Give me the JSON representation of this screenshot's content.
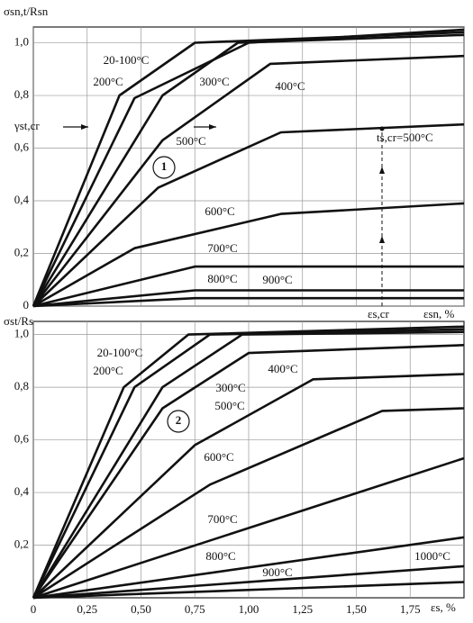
{
  "chart_data": [
    {
      "type": "line",
      "y_label": "σsn,t/Rsn",
      "x_label": "εsn, %",
      "xlim": [
        0,
        2
      ],
      "ylim": [
        0,
        1.06
      ],
      "xticks": [
        0,
        0.25,
        0.5,
        0.75,
        1,
        1.25,
        1.5,
        1.75,
        2
      ],
      "yticks": [
        0,
        {
          "value": 0.2,
          "label": "0,2"
        },
        {
          "value": 0.4,
          "label": "0,4"
        },
        {
          "value": 0.6,
          "label": "0,6"
        },
        {
          "value": 0.8,
          "label": "0,8"
        },
        {
          "value": 1,
          "label": "1,0"
        }
      ],
      "grid": true,
      "color": "#111",
      "annotations": [
        "γst,cr",
        "ts,cr=500°C",
        "εs,cr",
        "1"
      ],
      "series": [
        {
          "name": "20-100°C",
          "x": [
            0,
            0.4,
            0.75,
            2
          ],
          "values": [
            0,
            0.8,
            1.0,
            1.04
          ]
        },
        {
          "name": "200°C",
          "x": [
            0,
            0.47,
            1.0,
            2
          ],
          "values": [
            0,
            0.79,
            1.0,
            1.05
          ]
        },
        {
          "name": "300°C",
          "x": [
            0,
            0.6,
            0.95,
            2
          ],
          "values": [
            0,
            0.8,
            1.0,
            1.03
          ]
        },
        {
          "name": "400°C",
          "x": [
            0,
            0.6,
            1.1,
            2
          ],
          "values": [
            0,
            0.63,
            0.92,
            0.95
          ]
        },
        {
          "name": "500°C",
          "x": [
            0,
            0.58,
            1.15,
            2
          ],
          "values": [
            0,
            0.45,
            0.66,
            0.69
          ]
        },
        {
          "name": "600°C",
          "x": [
            0,
            0.47,
            1.15,
            2
          ],
          "values": [
            0,
            0.22,
            0.35,
            0.39
          ]
        },
        {
          "name": "700°C",
          "x": [
            0,
            0.75,
            2
          ],
          "values": [
            0,
            0.15,
            0.15
          ]
        },
        {
          "name": "800°C",
          "x": [
            0,
            0.75,
            2
          ],
          "values": [
            0,
            0.06,
            0.06
          ]
        },
        {
          "name": "900°C",
          "x": [
            0,
            0.75,
            2
          ],
          "values": [
            0,
            0.03,
            0.03
          ]
        }
      ]
    },
    {
      "type": "line",
      "y_label": "σst/Rs",
      "x_label": "εs, %",
      "xlim": [
        0,
        2
      ],
      "ylim": [
        0,
        1.05
      ],
      "xticks": [
        0,
        {
          "value": 0.25,
          "label": "0,25"
        },
        {
          "value": 0.5,
          "label": "0,50"
        },
        {
          "value": 0.75,
          "label": "0,75"
        },
        {
          "value": 1,
          "label": "1,00"
        },
        {
          "value": 1.25,
          "label": "1,25"
        },
        {
          "value": 1.5,
          "label": "1,50"
        },
        {
          "value": 1.75,
          "label": "1,75"
        }
      ],
      "yticks": [
        {
          "value": 0.2,
          "label": "0,2"
        },
        {
          "value": 0.4,
          "label": "0,4"
        },
        {
          "value": 0.6,
          "label": "0,6"
        },
        {
          "value": 0.8,
          "label": "0,8"
        },
        {
          "value": 1,
          "label": "1,0"
        }
      ],
      "grid": true,
      "color": "#111",
      "annotations": [
        "2"
      ],
      "series": [
        {
          "name": "20-100°C",
          "x": [
            0,
            0.42,
            0.72,
            2
          ],
          "values": [
            0,
            0.8,
            1.0,
            1.03
          ]
        },
        {
          "name": "200°C",
          "x": [
            0,
            0.47,
            0.82,
            2
          ],
          "values": [
            0,
            0.8,
            1.0,
            1.02
          ]
        },
        {
          "name": "300°C",
          "x": [
            0,
            0.6,
            0.97,
            2
          ],
          "values": [
            0,
            0.8,
            1.0,
            1.01
          ]
        },
        {
          "name": "400°C",
          "x": [
            0,
            0.6,
            1.0,
            2
          ],
          "values": [
            0,
            0.72,
            0.93,
            0.96
          ]
        },
        {
          "name": "500°C",
          "x": [
            0,
            0.75,
            1.3,
            2
          ],
          "values": [
            0,
            0.58,
            0.83,
            0.85
          ]
        },
        {
          "name": "600°C",
          "x": [
            0,
            0.82,
            1.62,
            2
          ],
          "values": [
            0,
            0.43,
            0.71,
            0.72
          ]
        },
        {
          "name": "700°C",
          "x": [
            0,
            2
          ],
          "values": [
            0,
            0.53
          ]
        },
        {
          "name": "800°C",
          "x": [
            0,
            2
          ],
          "values": [
            0,
            0.23
          ]
        },
        {
          "name": "900°C",
          "x": [
            0,
            2
          ],
          "values": [
            0,
            0.12
          ]
        },
        {
          "name": "1000°C",
          "x": [
            0,
            2
          ],
          "values": [
            0,
            0.06
          ]
        }
      ]
    }
  ]
}
